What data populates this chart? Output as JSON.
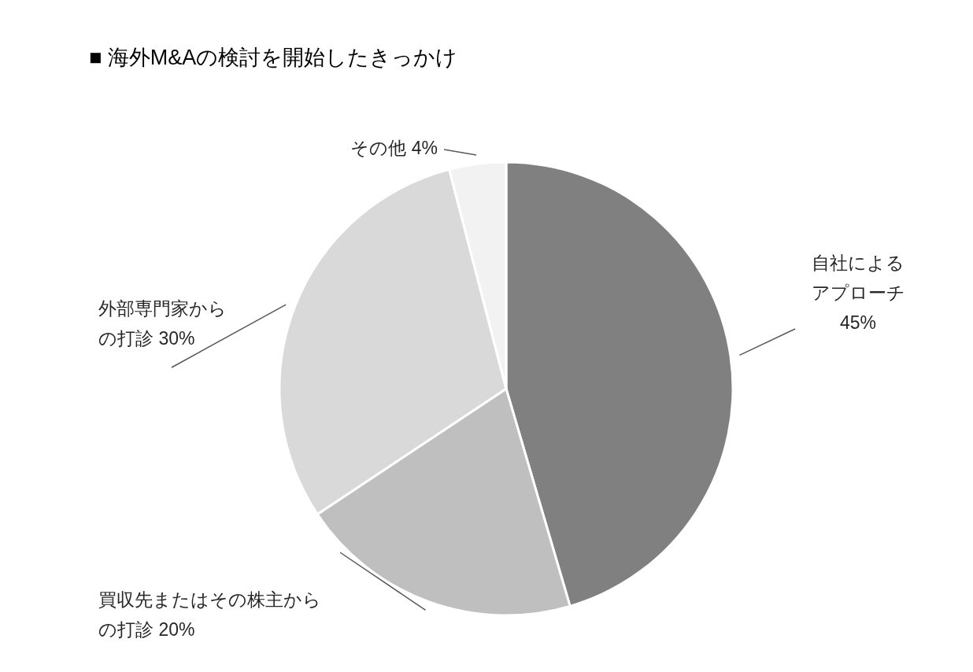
{
  "chart_data": {
    "type": "pie",
    "title": "■ 海外M&Aの検討を開始したきっかけ",
    "categories": [
      "自社によるアプローチ",
      "買収先またはその株主からの打診",
      "外部専門家からの打診",
      "その他"
    ],
    "values": [
      45,
      20,
      30,
      4
    ],
    "value_labels": [
      "45%",
      "20%",
      "30%",
      "4%"
    ],
    "colors": [
      "#808080",
      "#bfbfbf",
      "#d9d9d9",
      "#f2f2f2"
    ]
  }
}
